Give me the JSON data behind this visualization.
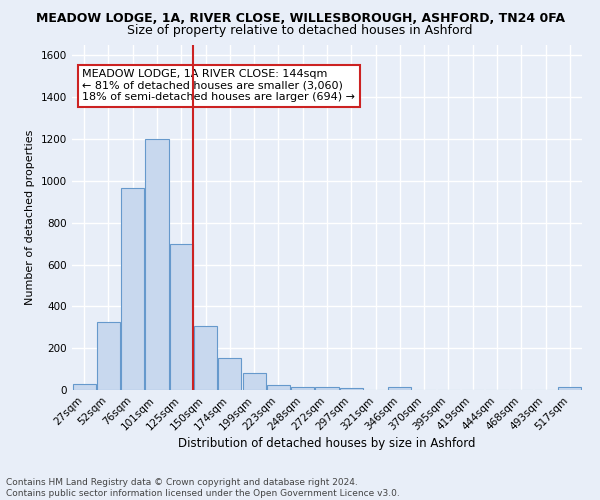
{
  "title": "MEADOW LODGE, 1A, RIVER CLOSE, WILLESBOROUGH, ASHFORD, TN24 0FA",
  "subtitle": "Size of property relative to detached houses in Ashford",
  "xlabel": "Distribution of detached houses by size in Ashford",
  "ylabel": "Number of detached properties",
  "bar_labels": [
    "27sqm",
    "52sqm",
    "76sqm",
    "101sqm",
    "125sqm",
    "150sqm",
    "174sqm",
    "199sqm",
    "223sqm",
    "248sqm",
    "272sqm",
    "297sqm",
    "321sqm",
    "346sqm",
    "370sqm",
    "395sqm",
    "419sqm",
    "444sqm",
    "468sqm",
    "493sqm",
    "517sqm"
  ],
  "bar_values": [
    28,
    325,
    965,
    1200,
    700,
    305,
    155,
    80,
    25,
    15,
    12,
    10,
    0,
    15,
    0,
    0,
    0,
    0,
    0,
    0,
    15
  ],
  "bar_color": "#c8d8ee",
  "bar_edge_color": "#6699cc",
  "vline_color": "#cc2222",
  "ylim": [
    0,
    1650
  ],
  "yticks": [
    0,
    200,
    400,
    600,
    800,
    1000,
    1200,
    1400,
    1600
  ],
  "annotation_text": "MEADOW LODGE, 1A RIVER CLOSE: 144sqm\n← 81% of detached houses are smaller (3,060)\n18% of semi-detached houses are larger (694) →",
  "footer_text": "Contains HM Land Registry data © Crown copyright and database right 2024.\nContains public sector information licensed under the Open Government Licence v3.0.",
  "bg_color": "#e8eef8",
  "grid_color": "#ffffff",
  "annotation_box_color": "#ffffff",
  "annotation_box_edge": "#cc2222",
  "title_fontsize": 9,
  "subtitle_fontsize": 9,
  "ylabel_fontsize": 8,
  "xlabel_fontsize": 8.5,
  "tick_fontsize": 7.5,
  "footer_fontsize": 6.5,
  "annot_fontsize": 8
}
